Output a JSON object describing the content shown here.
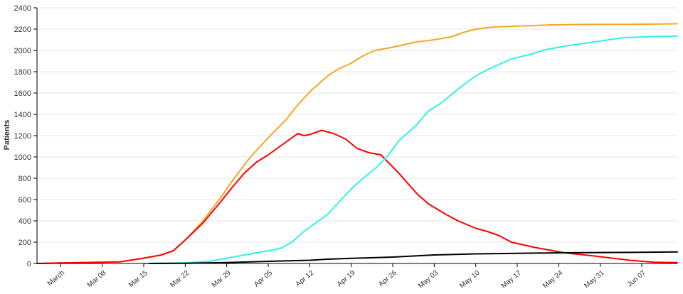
{
  "chart_data": {
    "type": "line",
    "title": "",
    "xlabel": "",
    "ylabel": "Patients",
    "ylim": [
      0,
      2400
    ],
    "y_ticks": [
      0,
      200,
      400,
      600,
      800,
      1000,
      1200,
      1400,
      1600,
      1800,
      2000,
      2200,
      2400
    ],
    "x_ticks": [
      {
        "day": 0,
        "label": "March"
      },
      {
        "day": 7,
        "label": "Mar 08"
      },
      {
        "day": 14,
        "label": "Mar 15"
      },
      {
        "day": 21,
        "label": "Mar 22"
      },
      {
        "day": 28,
        "label": "Mar 29"
      },
      {
        "day": 35,
        "label": "Apr 05"
      },
      {
        "day": 42,
        "label": "Apr 12"
      },
      {
        "day": 49,
        "label": "Apr 19"
      },
      {
        "day": 56,
        "label": "Apr 26"
      },
      {
        "day": 63,
        "label": "May 03"
      },
      {
        "day": 70,
        "label": "May 10"
      },
      {
        "day": 77,
        "label": "May 17"
      },
      {
        "day": 84,
        "label": "May 24"
      },
      {
        "day": 91,
        "label": "May 31"
      },
      {
        "day": 98,
        "label": "Jun 07"
      }
    ],
    "xlim": [
      -4,
      104
    ],
    "grid": true,
    "series": [
      {
        "color": "#f5a623",
        "points": [
          [
            -4,
            0
          ],
          [
            0,
            5
          ],
          [
            5,
            10
          ],
          [
            10,
            15
          ],
          [
            14,
            50
          ],
          [
            17,
            80
          ],
          [
            19,
            120
          ],
          [
            21,
            220
          ],
          [
            24,
            400
          ],
          [
            27,
            620
          ],
          [
            29,
            780
          ],
          [
            32,
            1000
          ],
          [
            35,
            1180
          ],
          [
            38,
            1350
          ],
          [
            40,
            1490
          ],
          [
            42,
            1610
          ],
          [
            45,
            1760
          ],
          [
            47,
            1830
          ],
          [
            49,
            1880
          ],
          [
            51,
            1950
          ],
          [
            53,
            2000
          ],
          [
            56,
            2030
          ],
          [
            60,
            2080
          ],
          [
            63,
            2100
          ],
          [
            66,
            2130
          ],
          [
            68,
            2170
          ],
          [
            70,
            2200
          ],
          [
            73,
            2220
          ],
          [
            78,
            2230
          ],
          [
            83,
            2240
          ],
          [
            90,
            2245
          ],
          [
            96,
            2245
          ],
          [
            104,
            2250
          ]
        ]
      },
      {
        "color": "#ff0000",
        "points": [
          [
            -4,
            0
          ],
          [
            0,
            5
          ],
          [
            5,
            10
          ],
          [
            10,
            15
          ],
          [
            14,
            50
          ],
          [
            17,
            80
          ],
          [
            19,
            120
          ],
          [
            21,
            220
          ],
          [
            24,
            380
          ],
          [
            27,
            580
          ],
          [
            29,
            720
          ],
          [
            31,
            850
          ],
          [
            33,
            950
          ],
          [
            35,
            1020
          ],
          [
            37,
            1100
          ],
          [
            39,
            1180
          ],
          [
            40,
            1220
          ],
          [
            41,
            1200
          ],
          [
            42,
            1210
          ],
          [
            43,
            1230
          ],
          [
            44,
            1250
          ],
          [
            46,
            1220
          ],
          [
            48,
            1170
          ],
          [
            50,
            1080
          ],
          [
            52,
            1040
          ],
          [
            54,
            1020
          ],
          [
            57,
            850
          ],
          [
            60,
            660
          ],
          [
            62,
            560
          ],
          [
            65,
            460
          ],
          [
            67,
            400
          ],
          [
            70,
            330
          ],
          [
            72,
            300
          ],
          [
            74,
            260
          ],
          [
            76,
            200
          ],
          [
            80,
            150
          ],
          [
            85,
            100
          ],
          [
            90,
            70
          ],
          [
            96,
            30
          ],
          [
            100,
            12
          ],
          [
            104,
            8
          ]
        ]
      },
      {
        "color": "#33eeee",
        "points": [
          [
            14,
            0
          ],
          [
            21,
            5
          ],
          [
            25,
            20
          ],
          [
            28,
            50
          ],
          [
            31,
            80
          ],
          [
            33,
            100
          ],
          [
            35,
            120
          ],
          [
            37,
            140
          ],
          [
            39,
            200
          ],
          [
            41,
            300
          ],
          [
            43,
            380
          ],
          [
            45,
            460
          ],
          [
            47,
            580
          ],
          [
            49,
            700
          ],
          [
            51,
            800
          ],
          [
            53,
            890
          ],
          [
            55,
            1000
          ],
          [
            57,
            1150
          ],
          [
            60,
            1300
          ],
          [
            62,
            1430
          ],
          [
            64,
            1500
          ],
          [
            66,
            1590
          ],
          [
            68,
            1680
          ],
          [
            70,
            1760
          ],
          [
            72,
            1820
          ],
          [
            74,
            1870
          ],
          [
            76,
            1920
          ],
          [
            79,
            1960
          ],
          [
            82,
            2010
          ],
          [
            85,
            2040
          ],
          [
            90,
            2080
          ],
          [
            95,
            2120
          ],
          [
            100,
            2130
          ],
          [
            104,
            2135
          ]
        ]
      },
      {
        "color": "#000000",
        "points": [
          [
            15,
            0
          ],
          [
            21,
            2
          ],
          [
            28,
            8
          ],
          [
            35,
            20
          ],
          [
            42,
            30
          ],
          [
            45,
            40
          ],
          [
            50,
            50
          ],
          [
            56,
            60
          ],
          [
            63,
            80
          ],
          [
            70,
            90
          ],
          [
            77,
            95
          ],
          [
            84,
            100
          ],
          [
            91,
            103
          ],
          [
            98,
            105
          ],
          [
            104,
            108
          ]
        ]
      }
    ]
  }
}
